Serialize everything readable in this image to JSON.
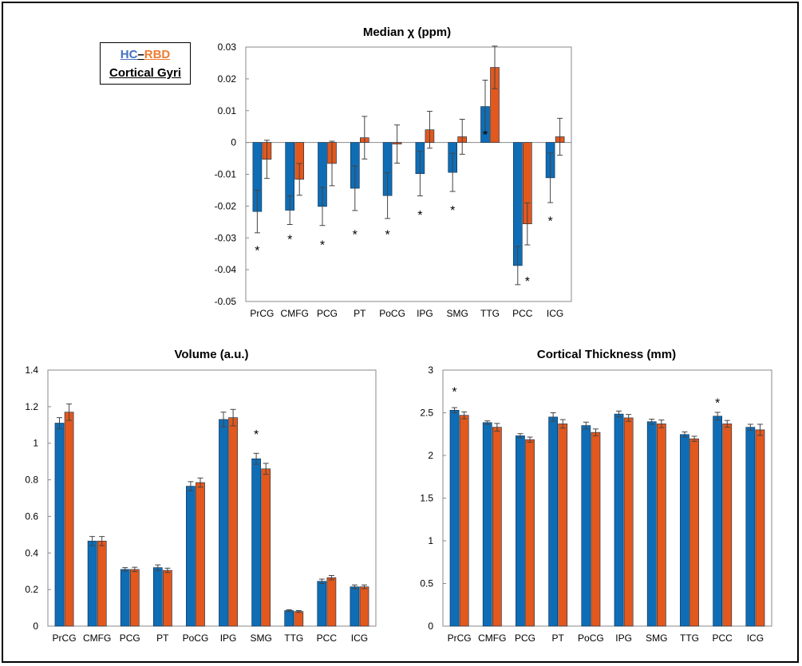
{
  "legend": {
    "hc": "HC",
    "dash": "–",
    "rbd": "RBD",
    "region": "Cortical Gyri"
  },
  "colors": {
    "hc": "#0f6db5",
    "rbd": "#e2581d",
    "axis": "#888888",
    "error": "#444444"
  },
  "chart_data": [
    {
      "id": "median-chi",
      "type": "bar",
      "title": "Median χ (ppm)",
      "categories": [
        "PrCG",
        "CMFG",
        "PCG",
        "PT",
        "PoCG",
        "IPG",
        "SMG",
        "TTG",
        "PCC",
        "ICG"
      ],
      "series": [
        {
          "name": "HC",
          "values": [
            -0.0217,
            -0.0213,
            -0.0201,
            -0.0144,
            -0.0167,
            -0.0098,
            -0.0094,
            0.0113,
            -0.0387,
            -0.0111
          ],
          "errors": [
            0.0067,
            0.0045,
            0.006,
            0.007,
            0.0072,
            0.007,
            0.006,
            0.0083,
            0.006,
            0.0078
          ]
        },
        {
          "name": "RBD",
          "values": [
            -0.0053,
            -0.0116,
            -0.0066,
            0.0015,
            -0.0005,
            0.004,
            0.0018,
            0.0236,
            -0.0256,
            0.0018
          ],
          "errors": [
            0.006,
            0.005,
            0.007,
            0.0067,
            0.006,
            0.0058,
            0.0055,
            0.0067,
            0.0066,
            0.0058
          ]
        }
      ],
      "ylim": [
        -0.05,
        0.03
      ],
      "yticks": [
        "0.03",
        "0.02",
        "0.01",
        "0",
        "-0.01",
        "-0.02",
        "-0.03",
        "-0.04",
        "-0.05"
      ],
      "significant": [
        {
          "category": "PrCG",
          "y": -0.0333
        },
        {
          "category": "CMFG",
          "y": -0.0298
        },
        {
          "category": "PCG",
          "y": -0.0316
        },
        {
          "category": "PT",
          "y": -0.0283
        },
        {
          "category": "PoCG",
          "y": -0.0283
        },
        {
          "category": "IPG",
          "y": -0.0222
        },
        {
          "category": "SMG",
          "y": -0.0206
        },
        {
          "category": "TTG",
          "y": 0.003
        },
        {
          "category": "PCC",
          "y": -0.043,
          "series": "RBD"
        },
        {
          "category": "ICG",
          "y": -0.024
        }
      ],
      "star": "*"
    },
    {
      "id": "volume",
      "type": "bar",
      "title": "Volume (a.u.)",
      "categories": [
        "PrCG",
        "CMFG",
        "PCG",
        "PT",
        "PoCG",
        "IPG",
        "SMG",
        "TTG",
        "PCC",
        "ICG"
      ],
      "series": [
        {
          "name": "HC",
          "values": [
            1.11,
            0.465,
            0.31,
            0.32,
            0.765,
            1.13,
            0.915,
            0.085,
            0.245,
            0.215
          ],
          "errors": [
            0.03,
            0.025,
            0.01,
            0.015,
            0.025,
            0.04,
            0.03,
            0.005,
            0.012,
            0.01
          ]
        },
        {
          "name": "RBD",
          "values": [
            1.17,
            0.465,
            0.31,
            0.305,
            0.785,
            1.14,
            0.86,
            0.08,
            0.265,
            0.215
          ],
          "errors": [
            0.045,
            0.025,
            0.012,
            0.012,
            0.025,
            0.045,
            0.03,
            0.005,
            0.012,
            0.01
          ]
        }
      ],
      "ylim": [
        0,
        1.4
      ],
      "yticks": [
        "1.4",
        "1.2",
        "1",
        "0.8",
        "0.6",
        "0.4",
        "0.2",
        "0"
      ],
      "significant": [
        {
          "category": "SMG",
          "y": 1.06
        }
      ],
      "star": "*"
    },
    {
      "id": "cortical-thickness",
      "type": "bar",
      "title": "Cortical Thickness (mm)",
      "categories": [
        "PrCG",
        "CMFG",
        "PCG",
        "PT",
        "PoCG",
        "IPG",
        "SMG",
        "TTG",
        "PCC",
        "ICG"
      ],
      "series": [
        {
          "name": "HC",
          "values": [
            2.53,
            2.385,
            2.23,
            2.45,
            2.35,
            2.485,
            2.395,
            2.245,
            2.46,
            2.33
          ],
          "errors": [
            0.03,
            0.02,
            0.025,
            0.05,
            0.04,
            0.035,
            0.03,
            0.03,
            0.045,
            0.035
          ]
        },
        {
          "name": "RBD",
          "values": [
            2.47,
            2.33,
            2.185,
            2.37,
            2.27,
            2.44,
            2.37,
            2.195,
            2.37,
            2.3
          ],
          "errors": [
            0.04,
            0.045,
            0.03,
            0.05,
            0.04,
            0.04,
            0.045,
            0.03,
            0.04,
            0.065
          ]
        }
      ],
      "ylim": [
        0,
        3
      ],
      "yticks": [
        "3",
        "2.5",
        "2",
        "1.5",
        "1",
        "0.5",
        "0"
      ],
      "significant": [
        {
          "category": "PrCG",
          "y": 2.77
        },
        {
          "category": "PCC",
          "y": 2.64
        }
      ],
      "star": "*"
    }
  ]
}
